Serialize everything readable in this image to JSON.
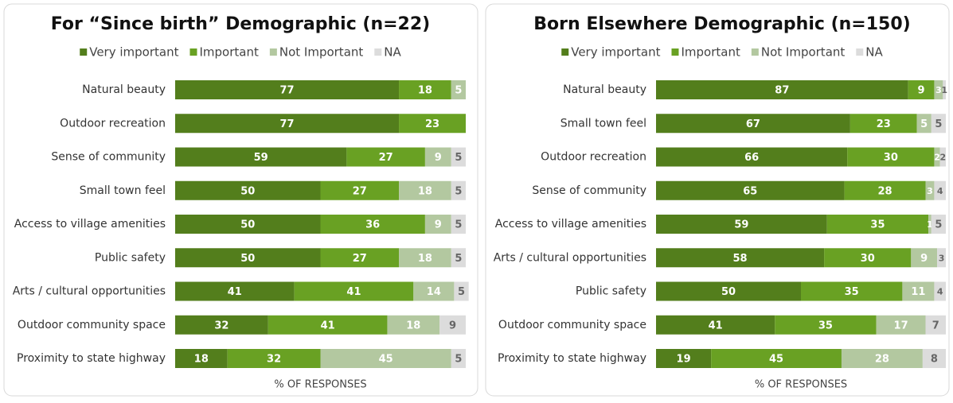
{
  "chart_data": [
    {
      "type": "stacked_barh",
      "title": "For “Since birth” Demographic (n=22)",
      "xlabel": "% OF RESPONSES",
      "xlim": [
        0,
        100
      ],
      "categories": [
        "Natural beauty",
        "Outdoor recreation",
        "Sense of community",
        "Small town feel",
        "Access to village amenities",
        "Public safety",
        "Arts / cultural opportunities",
        "Outdoor community space",
        "Proximity to state highway"
      ],
      "series": [
        {
          "name": "Very important",
          "color": "#537e1c",
          "values": [
            77,
            77,
            59,
            50,
            50,
            50,
            41,
            32,
            18
          ]
        },
        {
          "name": "Important",
          "color": "#69a123",
          "values": [
            18,
            23,
            27,
            27,
            36,
            27,
            41,
            41,
            32
          ]
        },
        {
          "name": "Not Important",
          "color": "#b3c8a0",
          "values": [
            5,
            null,
            9,
            18,
            9,
            18,
            14,
            18,
            45
          ]
        },
        {
          "name": "NA",
          "color": "#dcdcdc",
          "values": [
            null,
            null,
            5,
            5,
            5,
            5,
            5,
            9,
            5
          ]
        }
      ]
    },
    {
      "type": "stacked_barh",
      "title": "Born Elsewhere Demographic (n=150)",
      "xlabel": "% OF RESPONSES",
      "xlim": [
        0,
        100
      ],
      "categories": [
        "Natural beauty",
        "Small town feel",
        "Outdoor recreation",
        "Sense of community",
        "Access to village amenities",
        "Arts / cultural opportunities",
        "Public safety",
        "Outdoor community space",
        "Proximity to state highway"
      ],
      "series": [
        {
          "name": "Very important",
          "color": "#537e1c",
          "values": [
            87,
            67,
            66,
            65,
            59,
            58,
            50,
            41,
            19
          ]
        },
        {
          "name": "Important",
          "color": "#69a123",
          "values": [
            9,
            23,
            30,
            28,
            35,
            30,
            35,
            35,
            45
          ]
        },
        {
          "name": "Not Important",
          "color": "#b3c8a0",
          "values": [
            3,
            5,
            2,
            3,
            1,
            9,
            11,
            17,
            28
          ]
        },
        {
          "name": "NA",
          "color": "#dcdcdc",
          "values": [
            1,
            5,
            2,
            4,
            5,
            3,
            4,
            7,
            8
          ]
        }
      ]
    }
  ]
}
